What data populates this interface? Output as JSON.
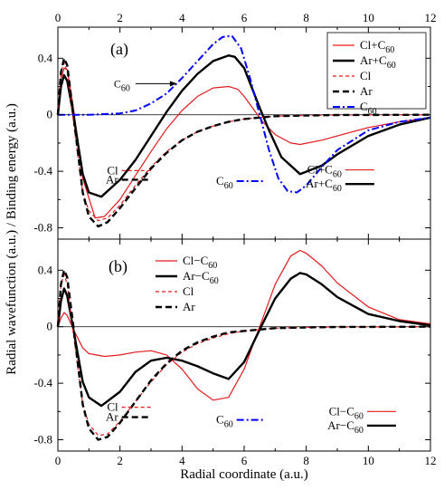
{
  "chart_data": [
    {
      "type": "line",
      "panel_tag": "(a)",
      "xlim": [
        0,
        12
      ],
      "ylim": [
        -0.88,
        0.62
      ],
      "xticks": [
        0,
        2,
        4,
        6,
        8,
        10,
        12
      ],
      "yticks": [
        {
          "v": 0.4,
          "label": "0.4"
        },
        {
          "v": 0,
          "label": "0"
        },
        {
          "v": -0.4,
          "label": "-0.4"
        },
        {
          "v": -0.8,
          "label": "-0.8"
        }
      ],
      "xlabel": "Radial coordinate (a.u.)",
      "ylabel": "Radial wavefunction (a.u.) / Binding energy (a.u.)",
      "legend_position": "top-right",
      "series": [
        {
          "name": "Cl+C60",
          "name_sub": [
            "Cl+C",
            "60"
          ],
          "color": "#e41a1c",
          "width": 1.2,
          "dash": "",
          "x": [
            0,
            0.1,
            0.2,
            0.3,
            0.5,
            0.8,
            1.2,
            1.5,
            2.0,
            2.5,
            3.0,
            3.5,
            4.0,
            4.5,
            5.0,
            5.5,
            5.8,
            6.0,
            6.3,
            6.6,
            7.0,
            7.5,
            7.8,
            8.5,
            9.0,
            10.0,
            11.0,
            12.0
          ],
          "y": [
            0,
            0.25,
            0.33,
            0.32,
            0.05,
            -0.45,
            -0.73,
            -0.72,
            -0.6,
            -0.43,
            -0.26,
            -0.1,
            0.03,
            0.13,
            0.19,
            0.2,
            0.18,
            0.13,
            0.04,
            -0.05,
            -0.14,
            -0.2,
            -0.21,
            -0.18,
            -0.15,
            -0.09,
            -0.05,
            -0.02
          ]
        },
        {
          "name": "Ar+C60",
          "name_sub": [
            "Ar+C",
            "60"
          ],
          "color": "#000000",
          "width": 2.4,
          "dash": "",
          "x": [
            0,
            0.1,
            0.2,
            0.3,
            0.5,
            0.8,
            1.0,
            1.4,
            2.0,
            2.5,
            3.0,
            3.5,
            4.0,
            4.5,
            5.0,
            5.5,
            5.7,
            6.0,
            6.5,
            6.8,
            7.2,
            7.8,
            8.5,
            9.0,
            10.0,
            11.0,
            12.0
          ],
          "y": [
            0,
            0.2,
            0.28,
            0.24,
            0.0,
            -0.42,
            -0.55,
            -0.58,
            -0.46,
            -0.32,
            -0.15,
            0.02,
            0.17,
            0.29,
            0.38,
            0.42,
            0.41,
            0.33,
            0.05,
            -0.11,
            -0.3,
            -0.42,
            -0.36,
            -0.28,
            -0.15,
            -0.07,
            -0.02
          ]
        },
        {
          "name": "Cl",
          "name_sub": [
            "Cl",
            ""
          ],
          "color": "#e41a1c",
          "width": 1.2,
          "dash": "4,3",
          "x": [
            0,
            0.1,
            0.2,
            0.3,
            0.5,
            0.8,
            1.0,
            1.3,
            1.6,
            2.0,
            2.5,
            3.0,
            3.5,
            4.0,
            4.5,
            5.0,
            5.5,
            6.0,
            6.5,
            7.0,
            8.0,
            9.0,
            10.0,
            12.0
          ],
          "y": [
            0,
            0.3,
            0.37,
            0.3,
            -0.05,
            -0.55,
            -0.68,
            -0.75,
            -0.73,
            -0.64,
            -0.5,
            -0.37,
            -0.26,
            -0.18,
            -0.12,
            -0.08,
            -0.05,
            -0.03,
            -0.02,
            -0.01,
            -0.005,
            -0.002,
            -0.001,
            0
          ]
        },
        {
          "name": "Ar",
          "name_sub": [
            "Ar",
            ""
          ],
          "color": "#000000",
          "width": 2.4,
          "dash": "7,4",
          "x": [
            0,
            0.1,
            0.2,
            0.3,
            0.5,
            0.8,
            1.0,
            1.3,
            1.6,
            2.0,
            2.5,
            3.0,
            3.5,
            4.0,
            4.5,
            5.0,
            5.5,
            6.0,
            6.5,
            7.0,
            8.0,
            9.0,
            10.0,
            12.0
          ],
          "y": [
            0,
            0.3,
            0.4,
            0.35,
            0.0,
            -0.55,
            -0.72,
            -0.79,
            -0.76,
            -0.66,
            -0.52,
            -0.38,
            -0.27,
            -0.18,
            -0.12,
            -0.08,
            -0.05,
            -0.03,
            -0.02,
            -0.01,
            -0.005,
            -0.002,
            -0.001,
            0
          ]
        },
        {
          "name": "C60",
          "name_sub": [
            "C",
            "60"
          ],
          "color": "#0000ff",
          "width": 2.0,
          "dash": "8,3,2,3",
          "x": [
            0,
            1.0,
            2.0,
            2.5,
            3.0,
            3.5,
            4.0,
            4.5,
            5.0,
            5.3,
            5.6,
            5.9,
            6.2,
            6.5,
            6.8,
            7.1,
            7.4,
            7.7,
            8.0,
            8.5,
            9.0,
            10.0,
            11.0,
            12.0
          ],
          "y": [
            0,
            0.0,
            0.01,
            0.03,
            0.08,
            0.15,
            0.26,
            0.38,
            0.5,
            0.55,
            0.56,
            0.47,
            0.25,
            0.0,
            -0.25,
            -0.45,
            -0.54,
            -0.55,
            -0.5,
            -0.37,
            -0.25,
            -0.11,
            -0.05,
            -0.02
          ]
        }
      ],
      "annotations": [
        {
          "id": "c60-arrow-label",
          "text": [
            "C",
            "60"
          ],
          "x": 3.2,
          "y": 0.22
        }
      ],
      "bottom_legend": [
        {
          "label": [
            "Cl",
            ""
          ],
          "series": "Cl",
          "x": 2.0,
          "y": -0.395
        },
        {
          "label": [
            "Ar",
            ""
          ],
          "series": "Ar",
          "x": 2.0,
          "y": -0.46
        },
        {
          "label": [
            "C",
            "60"
          ],
          "series": "C60",
          "x": 5.7,
          "y": -0.47
        },
        {
          "label": [
            "Cl+C",
            "60"
          ],
          "series": "Cl+C60",
          "x": 9.2,
          "y": -0.39
        },
        {
          "label": [
            "Ar+C",
            "60"
          ],
          "series": "Ar+C60",
          "x": 9.2,
          "y": -0.49
        }
      ]
    },
    {
      "type": "line",
      "panel_tag": "(b)",
      "xlim": [
        0,
        12
      ],
      "ylim": [
        -0.88,
        0.62
      ],
      "xticks": [
        0,
        2,
        4,
        6,
        8,
        10,
        12
      ],
      "yticks": [
        {
          "v": 0.4,
          "label": "0.4"
        },
        {
          "v": 0,
          "label": "0"
        },
        {
          "v": -0.4,
          "label": "-0.4"
        },
        {
          "v": -0.8,
          "label": "-0.8"
        }
      ],
      "xlabel": "Radial coordinate (a.u.)",
      "legend_position": "top-left",
      "series": [
        {
          "name": "Cl-C60",
          "name_sub": [
            "Cl−C",
            "60"
          ],
          "color": "#e41a1c",
          "width": 1.2,
          "dash": "",
          "x": [
            0,
            0.1,
            0.2,
            0.3,
            0.5,
            0.8,
            1.0,
            1.5,
            2.0,
            2.5,
            3.0,
            3.5,
            4.0,
            4.5,
            5.0,
            5.5,
            6.0,
            6.5,
            7.0,
            7.5,
            7.8,
            8.0,
            8.5,
            9.0,
            10.0,
            11.0,
            12.0
          ],
          "y": [
            0,
            0.06,
            0.1,
            0.08,
            -0.02,
            -0.15,
            -0.19,
            -0.21,
            -0.2,
            -0.18,
            -0.17,
            -0.2,
            -0.3,
            -0.44,
            -0.52,
            -0.5,
            -0.3,
            0.0,
            0.3,
            0.5,
            0.54,
            0.52,
            0.43,
            0.31,
            0.14,
            0.05,
            0.02
          ]
        },
        {
          "name": "Ar-C60",
          "name_sub": [
            "Ar−C",
            "60"
          ],
          "color": "#000000",
          "width": 2.4,
          "dash": "",
          "x": [
            0,
            0.1,
            0.2,
            0.3,
            0.5,
            0.8,
            1.0,
            1.4,
            2.0,
            2.5,
            3.0,
            3.5,
            4.0,
            4.5,
            5.0,
            5.5,
            6.0,
            6.5,
            7.0,
            7.5,
            7.8,
            8.0,
            8.5,
            9.0,
            10.0,
            11.0,
            12.0
          ],
          "y": [
            0,
            0.18,
            0.27,
            0.22,
            -0.02,
            -0.39,
            -0.5,
            -0.56,
            -0.46,
            -0.32,
            -0.24,
            -0.22,
            -0.24,
            -0.28,
            -0.33,
            -0.37,
            -0.25,
            -0.02,
            0.2,
            0.34,
            0.38,
            0.37,
            0.3,
            0.21,
            0.09,
            0.04,
            0.01
          ]
        },
        {
          "name": "Cl",
          "name_sub": [
            "Cl",
            ""
          ],
          "color": "#e41a1c",
          "width": 1.2,
          "dash": "4,3",
          "x": [
            0,
            0.1,
            0.2,
            0.3,
            0.5,
            0.8,
            1.0,
            1.3,
            1.6,
            2.0,
            2.5,
            3.0,
            3.5,
            4.0,
            4.5,
            5.0,
            5.5,
            6.0,
            6.5,
            7.0,
            8.0,
            9.0,
            10.0,
            12.0
          ],
          "y": [
            0,
            0.3,
            0.37,
            0.3,
            -0.05,
            -0.55,
            -0.69,
            -0.77,
            -0.76,
            -0.67,
            -0.53,
            -0.39,
            -0.27,
            -0.18,
            -0.12,
            -0.08,
            -0.05,
            -0.03,
            -0.02,
            -0.01,
            -0.005,
            -0.002,
            -0.001,
            0
          ]
        },
        {
          "name": "Ar",
          "name_sub": [
            "Ar",
            ""
          ],
          "color": "#000000",
          "width": 2.4,
          "dash": "7,4",
          "x": [
            0,
            0.1,
            0.2,
            0.3,
            0.5,
            0.8,
            1.0,
            1.3,
            1.6,
            2.0,
            2.5,
            3.0,
            3.5,
            4.0,
            4.5,
            5.0,
            5.5,
            6.0,
            6.5,
            7.0,
            8.0,
            9.0,
            10.0,
            12.0
          ],
          "y": [
            0,
            0.3,
            0.4,
            0.35,
            0.0,
            -0.55,
            -0.72,
            -0.8,
            -0.78,
            -0.68,
            -0.53,
            -0.38,
            -0.26,
            -0.17,
            -0.11,
            -0.07,
            -0.04,
            -0.03,
            -0.02,
            -0.01,
            -0.005,
            -0.002,
            -0.001,
            0
          ]
        }
      ],
      "annotations": [],
      "bottom_legend": [
        {
          "label": [
            "Cl",
            ""
          ],
          "series": "Cl",
          "x": 2.0,
          "y": -0.57
        },
        {
          "label": [
            "Ar",
            ""
          ],
          "series": "Ar",
          "x": 2.0,
          "y": -0.64
        },
        {
          "label": [
            "C",
            "60"
          ],
          "series": "C60-ref",
          "x": 5.7,
          "y": -0.66
        },
        {
          "label": [
            "Cl−C",
            "60"
          ],
          "series": "Cl-C60",
          "x": 9.9,
          "y": -0.6
        },
        {
          "label": [
            "Ar−C",
            "60"
          ],
          "series": "Ar-C60",
          "x": 9.9,
          "y": -0.7
        }
      ],
      "ref_styles": {
        "C60-ref": {
          "color": "#0000ff",
          "width": 2.0,
          "dash": "8,3,2,3"
        }
      }
    }
  ]
}
